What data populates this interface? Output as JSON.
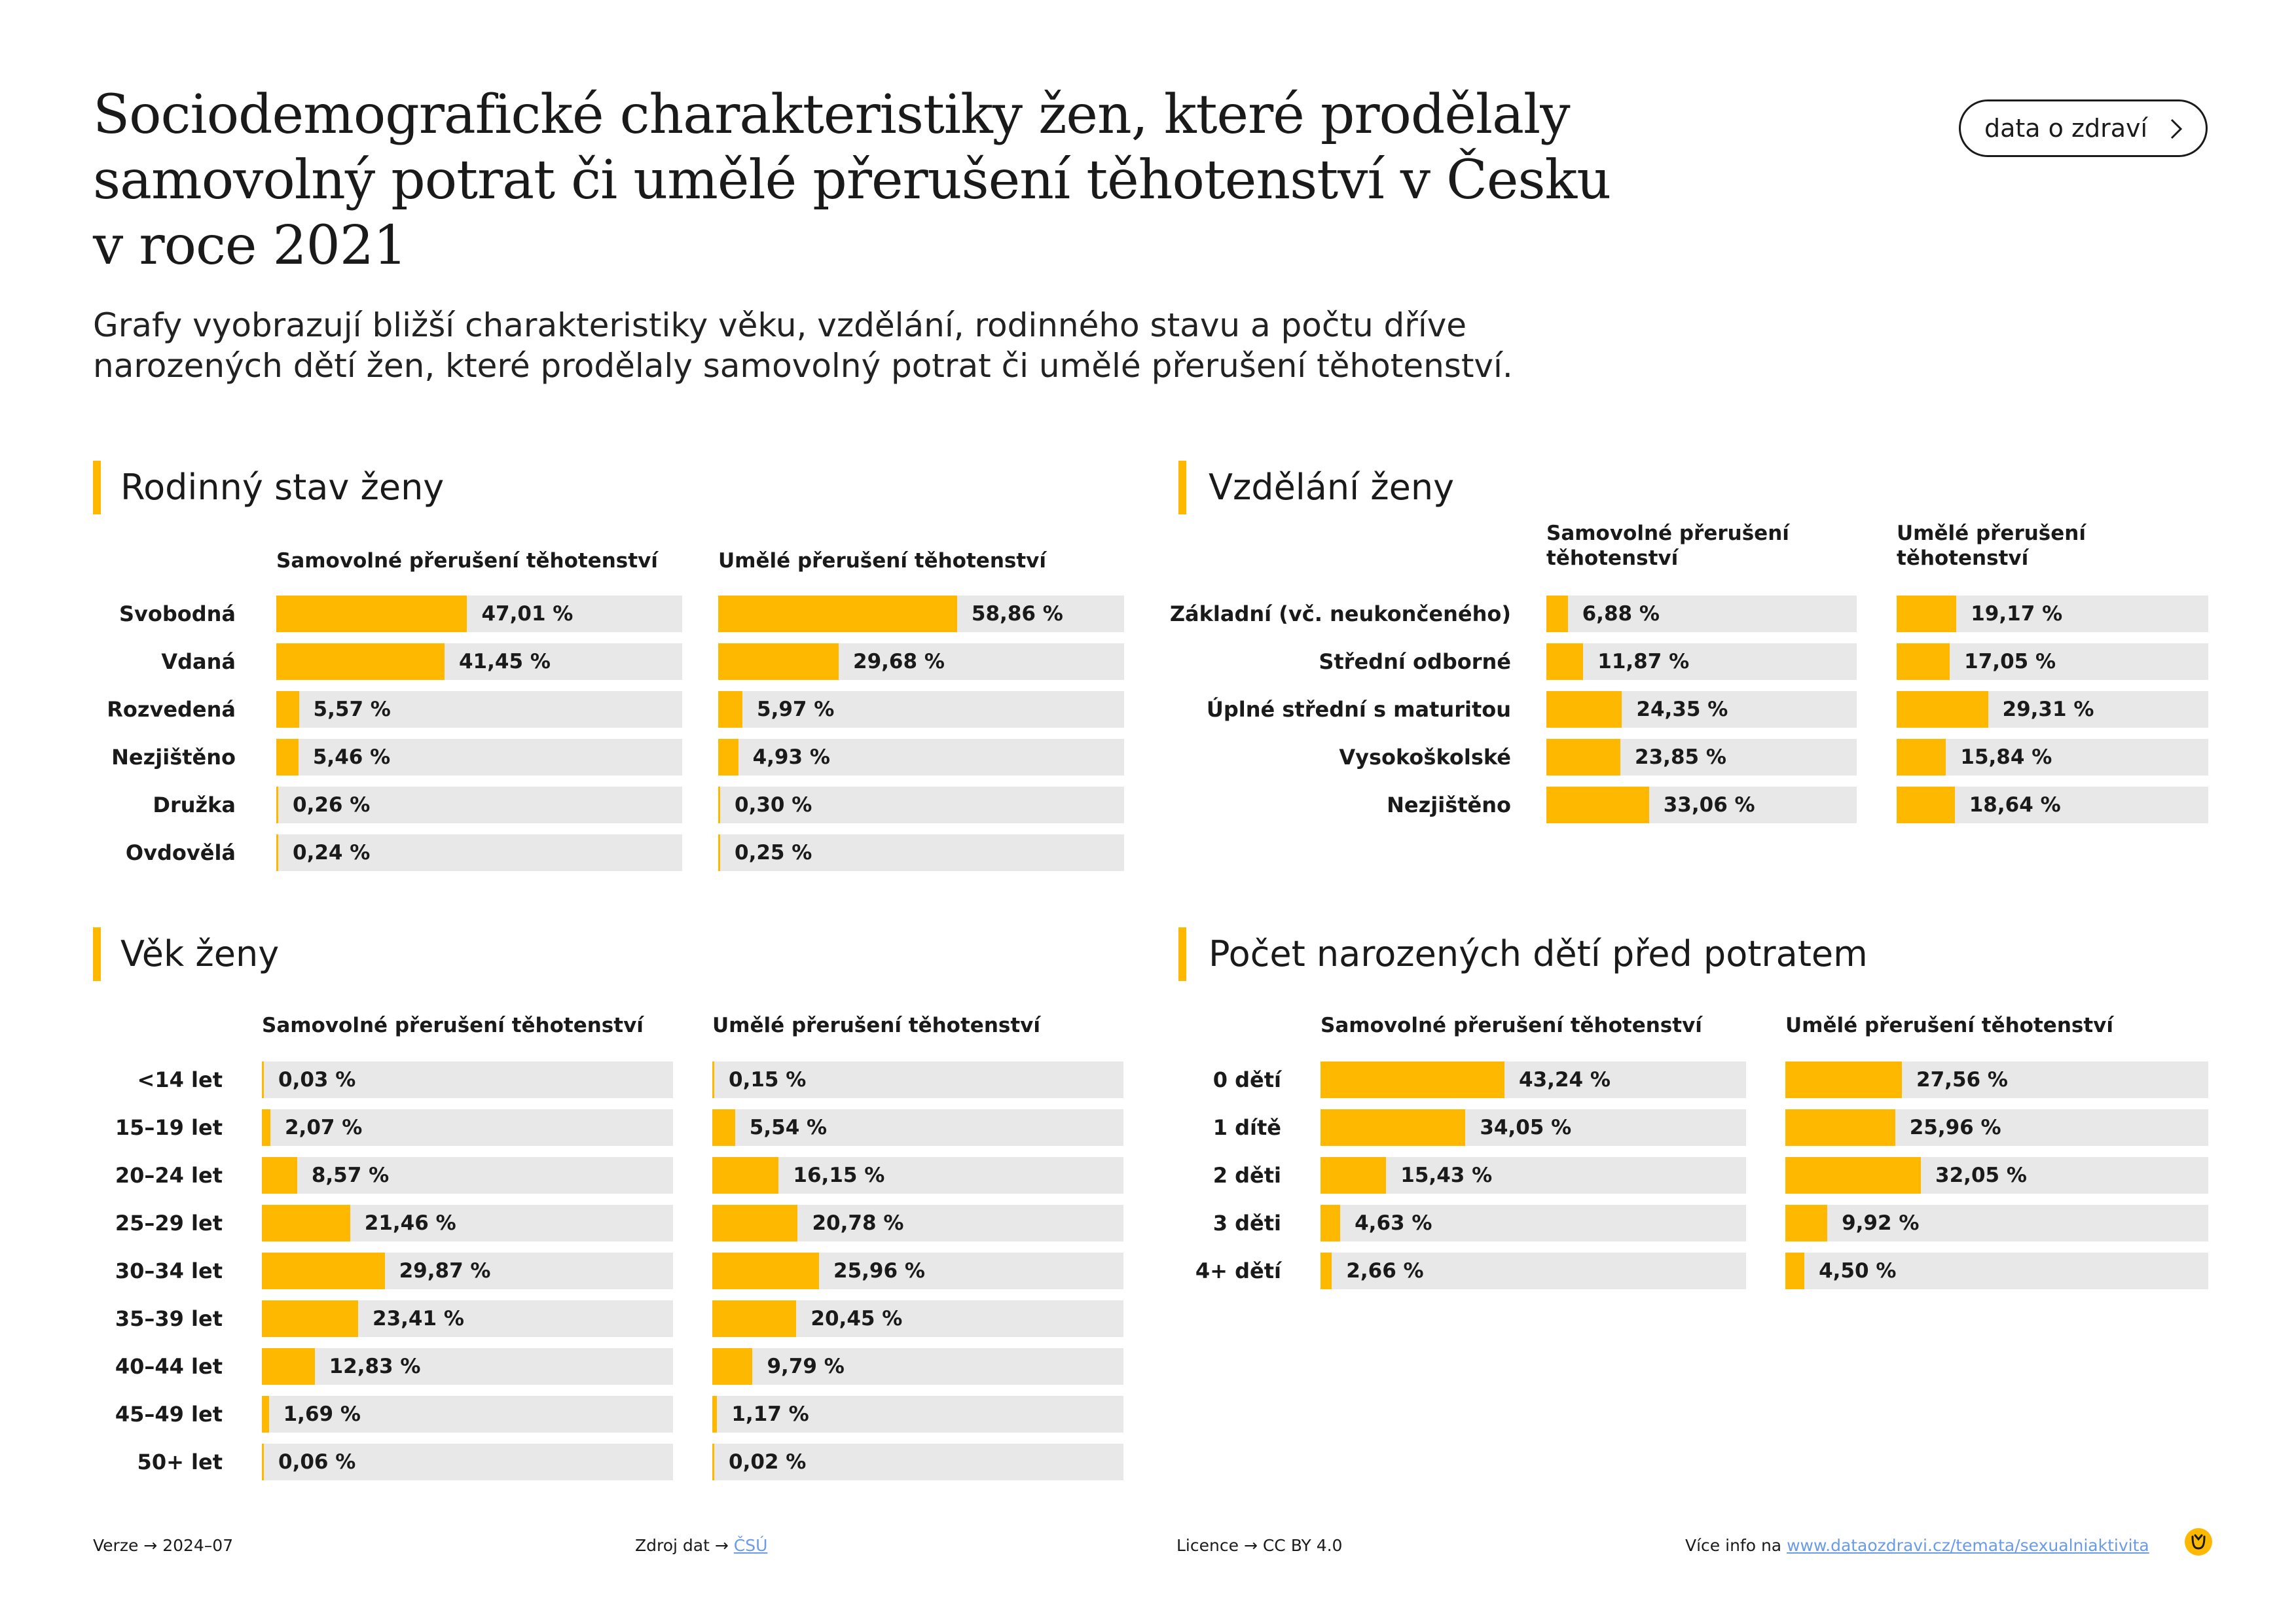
{
  "header": {
    "title": "Sociodemografické charakteristiky žen, které prodělaly samovolný potrat či umělé přerušení těhotenství v Česku v roce 2021",
    "subtitle": "Grafy vyobrazují bližší charakteristiky věku, vzdělání, rodinného stavu a počtu dříve narozených dětí žen, které prodělaly samovolný potrat či umělé přerušení těhotenství.",
    "cta_label": "data o zdraví"
  },
  "colors": {
    "accent": "#FFB800",
    "track": "#E8E8E8",
    "text": "#1a1a1a",
    "link": "#6a9be8"
  },
  "chart_data": [
    {
      "type": "bar",
      "orientation": "horizontal",
      "title": "Rodinný stav ženy",
      "categories": [
        "Svobodná",
        "Vdaná",
        "Rozvedená",
        "Nezjištěno",
        "Družka",
        "Ovdovělá"
      ],
      "series": [
        {
          "name": "Samovolné přerušení těhotenství",
          "values": [
            47.01,
            41.45,
            5.57,
            5.46,
            0.26,
            0.24
          ],
          "labels": [
            "47,01 %",
            "41,45 %",
            "5,57 %",
            "5,46 %",
            "0,26 %",
            "0,24 %"
          ]
        },
        {
          "name": "Umělé přerušení těhotenství",
          "values": [
            58.86,
            29.68,
            5.97,
            4.93,
            0.3,
            0.25
          ],
          "labels": [
            "58,86 %",
            "29,68 %",
            "5,97 %",
            "4,93 %",
            "0,30 %",
            "0,25 %"
          ]
        }
      ],
      "xlim": [
        0,
        100
      ]
    },
    {
      "type": "bar",
      "orientation": "horizontal",
      "title": "Vzdělání ženy",
      "categories": [
        "Základní (vč. neukončeného)",
        "Střední odborné",
        "Úplné střední s maturitou",
        "Vysokoškolské",
        "Nezjištěno"
      ],
      "series": [
        {
          "name": "Samovolné přerušení těhotenství",
          "values": [
            6.88,
            11.87,
            24.35,
            23.85,
            33.06
          ],
          "labels": [
            "6,88 %",
            "11,87 %",
            "24,35 %",
            "23,85 %",
            "33,06 %"
          ]
        },
        {
          "name": "Umělé přerušení těhotenství",
          "values": [
            19.17,
            17.05,
            29.31,
            15.84,
            18.64
          ],
          "labels": [
            "19,17 %",
            "17,05 %",
            "29,31 %",
            "15,84 %",
            "18,64 %"
          ]
        }
      ],
      "xlim": [
        0,
        100
      ]
    },
    {
      "type": "bar",
      "orientation": "horizontal",
      "title": "Věk ženy",
      "categories": [
        "<14 let",
        "15–19 let",
        "20–24 let",
        "25–29 let",
        "30–34 let",
        "35–39 let",
        "40–44 let",
        "45–49 let",
        "50+ let"
      ],
      "series": [
        {
          "name": "Samovolné přerušení těhotenství",
          "values": [
            0.03,
            2.07,
            8.57,
            21.46,
            29.87,
            23.41,
            12.83,
            1.69,
            0.06
          ],
          "labels": [
            "0,03 %",
            "2,07 %",
            "8,57 %",
            "21,46 %",
            "29,87 %",
            "23,41 %",
            "12,83 %",
            "1,69 %",
            "0,06 %"
          ]
        },
        {
          "name": "Umělé přerušení těhotenství",
          "values": [
            0.15,
            5.54,
            16.15,
            20.78,
            25.96,
            20.45,
            9.79,
            1.17,
            0.02
          ],
          "labels": [
            "0,15 %",
            "5,54 %",
            "16,15 %",
            "20,78 %",
            "25,96 %",
            "20,45 %",
            "9,79 %",
            "1,17 %",
            "0,02 %"
          ]
        }
      ],
      "xlim": [
        0,
        100
      ]
    },
    {
      "type": "bar",
      "orientation": "horizontal",
      "title": "Počet narozených dětí před potratem",
      "categories": [
        "0 dětí",
        "1 dítě",
        "2 děti",
        "3 děti",
        "4+ dětí"
      ],
      "series": [
        {
          "name": "Samovolné přerušení těhotenství",
          "values": [
            43.24,
            34.05,
            15.43,
            4.63,
            2.66
          ],
          "labels": [
            "43,24 %",
            "34,05 %",
            "15,43 %",
            "4,63 %",
            "2,66 %"
          ]
        },
        {
          "name": "Umělé přerušení těhotenství",
          "values": [
            27.56,
            25.96,
            32.05,
            9.92,
            4.5
          ],
          "labels": [
            "27,56 %",
            "25,96 %",
            "32,05 %",
            "9,92 %",
            "4,50 %"
          ]
        }
      ],
      "xlim": [
        0,
        100
      ]
    }
  ],
  "footer": {
    "version_label": "Verze",
    "version": "2024–07",
    "source_label": "Zdroj dat",
    "source": "ČSÚ",
    "license_label": "Licence",
    "license": "CC BY 4.0",
    "more_label": "Více info na",
    "more_link": "www.dataozdravi.cz/temata/sexualniaktivita",
    "arrow": "→"
  }
}
